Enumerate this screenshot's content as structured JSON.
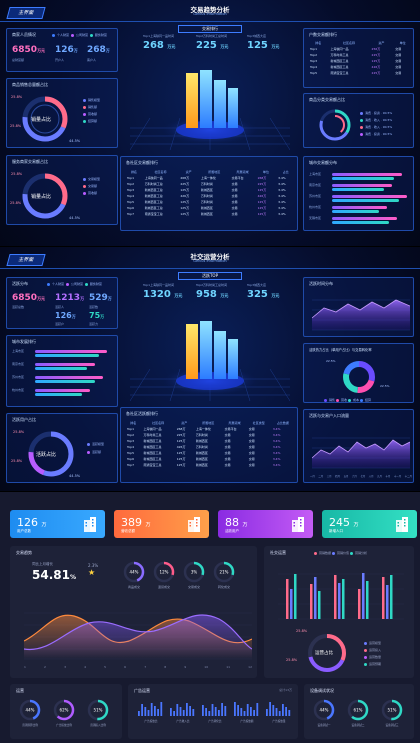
{
  "s1": {
    "title": "交易趋势分析",
    "subtitle": "Genius Information",
    "home": "主界面",
    "top_tab": "交易排行",
    "metrics": [
      {
        "label": "Top1上海除同一品时间",
        "value": "268",
        "unit": "万元"
      },
      {
        "label": "Top2万科时尚工总时间",
        "value": "225",
        "unit": "万元"
      },
      {
        "label": "Top3城西大店",
        "value": "125",
        "unit": "万元"
      }
    ],
    "left_top": {
      "title": "商家人员情况",
      "legend": [
        "个人财富",
        "公司财富",
        "服务财富"
      ],
      "stats": [
        {
          "value": "6850",
          "unit": "万元",
          "label": "总财富额"
        },
        {
          "value": "126",
          "unit": "万",
          "label": "开户人"
        },
        {
          "value": "268",
          "unit": "万",
          "label": "客户人"
        }
      ]
    },
    "left_mid": {
      "title": "商品销售总量额占比",
      "center": "销量占比",
      "pct_a": "25.8%",
      "pct_b": "25.8%",
      "pct_c": "44.5%",
      "legend": [
        "销售模型",
        "销售额",
        "营收额",
        "结算额"
      ]
    },
    "left_bot": {
      "title": "服务商家交易额占比",
      "center": "销量占比",
      "pct_a": "25.8%",
      "pct_b": "25.8%",
      "pct_c": "44.5%",
      "legend": [
        "交易模型",
        "交易额",
        "营收额"
      ]
    },
    "mid_table": {
      "title": "各社区交易额排行",
      "headers": [
        "排名",
        "社区名称",
        "资产",
        "所属地区",
        "所属领域",
        "单位",
        "占比"
      ],
      "rows": [
        [
          "Top1",
          "上海信同一品",
          "268万",
          "上海一体化",
          "交易平台",
          "268万",
          "3.4%"
        ],
        [
          "Top2",
          "万科时尚工总",
          "225万",
          "万科时尚",
          "交易",
          "225万",
          "3.4%"
        ],
        [
          "Top3",
          "新城西区工总",
          "125万",
          "新城西区",
          "交易",
          "125万",
          "3.4%"
        ],
        [
          "Top4",
          "新城西区工总",
          "426万",
          "万科时尚",
          "交易",
          "426万",
          "3.4%"
        ],
        [
          "Top5",
          "新城西区工总",
          "125万",
          "万科时尚",
          "交易",
          "125万",
          "3.4%"
        ],
        [
          "Top6",
          "新城西区工总",
          "125万",
          "新城西区",
          "交易",
          "125万",
          "3.4%"
        ],
        [
          "Top7",
          "南通宝宝工总",
          "125万",
          "新城西区",
          "交易",
          "125万",
          "3.4%"
        ]
      ]
    },
    "right_top": {
      "title": "户数交易额排行",
      "headers": [
        "排名",
        "社区名称",
        "资产",
        "单位"
      ],
      "rows": [
        [
          "Top1",
          "上海信同一品",
          "256万",
          "交易"
        ],
        [
          "Top2",
          "万科时尚工总",
          "225万",
          "交易"
        ],
        [
          "Top3",
          "新城西区工总",
          "125万",
          "交易"
        ],
        [
          "Top4",
          "新城西区工总",
          "426万",
          "交易"
        ],
        [
          "Top5",
          "南通宝宝工总",
          "225万",
          "交易"
        ]
      ]
    },
    "right_mid": {
      "title": "商品分类交易额占比",
      "legend": [
        "消费 · 投资 · 90.5%",
        "消费 · 收入 · 90.5%",
        "消费 · 收入 · 90.5%",
        "消费 · 投资 · 90.5%"
      ]
    },
    "right_bot": {
      "title": "城市交易额分布",
      "labels": [
        "上海市区",
        "南京市区",
        "苏州市区",
        "杭州市区",
        "无锡市区"
      ]
    }
  },
  "s2": {
    "title": "社交运营分析",
    "subtitle": "Genius Information",
    "home": "主界面",
    "top_tab": "活跃TOP",
    "metrics": [
      {
        "label": "Top1上海除同一品时间",
        "value": "1320",
        "unit": "万元"
      },
      {
        "label": "Top2万科时尚工总时间",
        "value": "958",
        "unit": "万元"
      },
      {
        "label": "Top3城西大店",
        "value": "325",
        "unit": "万元"
      }
    ],
    "left_top": {
      "title": "活跃分布",
      "legend": [
        "个人财富",
        "公司财富",
        "服务财富"
      ],
      "stats": [
        {
          "value": "6850",
          "unit": "万元",
          "label": "活跃总数"
        },
        {
          "value": "1213",
          "unit": "万",
          "label": "活跃人"
        },
        {
          "value": "529",
          "unit": "万",
          "label": "活跃数"
        },
        {
          "value": "126",
          "unit": "万",
          "label": "活跃户"
        },
        {
          "value": "75",
          "unit": "万",
          "label": "活跃力"
        }
      ]
    },
    "left_mid": {
      "title": "城市发展排行",
      "labels": [
        "上海市区",
        "南京市区",
        "苏州市区",
        "杭州市区"
      ]
    },
    "left_bot": {
      "title": "活跃用户占比",
      "center": "活跃占比",
      "pct_a": "25.8%",
      "pct_b": "25.8%",
      "pct_c": "44.5%",
      "legend": [
        "活跃模型",
        "活跃额"
      ]
    },
    "mid_table": {
      "title": "各社区活跃额排行",
      "headers": [
        "排名",
        "社区名称",
        "资产",
        "所属地区",
        "所属领域",
        "社区类型",
        "占比数据"
      ],
      "rows": [
        [
          "Top1",
          "上海信同一品",
          "268万",
          "上海一体化",
          "交易平台",
          "交易",
          "3.4%"
        ],
        [
          "Top2",
          "万科时尚工总",
          "225万",
          "万科时尚",
          "交易",
          "交易",
          "3.4%"
        ],
        [
          "Top3",
          "新城西区工总",
          "125万",
          "新城西区",
          "交易",
          "交易",
          "3.4%"
        ],
        [
          "Top4",
          "新城西区工总",
          "426万",
          "万科时尚",
          "交易",
          "交易",
          "3.4%"
        ],
        [
          "Top5",
          "新城西区工总",
          "125万",
          "新城西区",
          "交易",
          "交易",
          "3.4%"
        ],
        [
          "Top6",
          "新城西区工总",
          "125万",
          "新城西区",
          "交易",
          "交易",
          "3.4%"
        ],
        [
          "Top7",
          "南通宝宝工总",
          "125万",
          "新城西区",
          "交易",
          "交易",
          "3.4%"
        ]
      ]
    },
    "right_top": {
      "title": "活跃时间分布"
    },
    "right_mid": {
      "title": "活跃热力占比（单用户占比）与交易转化率",
      "note_a": "22.5%",
      "note_b": "22.5%",
      "legend": [
        "销售",
        "营收",
        "成本",
        "结算"
      ]
    },
    "right_bot": {
      "title": "活跃与交易户入口流量",
      "x_labels": [
        "一月",
        "二月",
        "三月",
        "四月",
        "五月",
        "六月",
        "七月",
        "八月",
        "九月",
        "十月",
        "十一月",
        "十二月"
      ]
    }
  },
  "s3": {
    "cards": [
      {
        "value": "126",
        "unit": "万",
        "label": "用户总数",
        "c1": "#1e8cf0",
        "c2": "#39a9ff"
      },
      {
        "value": "389",
        "unit": "万",
        "label": "营收总额",
        "c1": "#ff6a3d",
        "c2": "#ffa04a"
      },
      {
        "value": "88",
        "unit": "万",
        "label": "活跃用户",
        "c1": "#8a2be2",
        "c2": "#c45cf5"
      },
      {
        "value": "245",
        "unit": "万",
        "label": "新增人口",
        "c1": "#17b8a6",
        "c2": "#34e0c4"
      }
    ],
    "trend": {
      "title": "交易趋势",
      "label": "同比上月增长",
      "value": "54.81",
      "unit": "%",
      "mini": "2.3%",
      "rings": [
        {
          "v": "44%",
          "l": "商品成交",
          "c": "#8a6cff"
        },
        {
          "v": "12%",
          "l": "退货成交",
          "c": "#ff5c8a"
        },
        {
          "v": "3%",
          "l": "交易成交",
          "c": "#2fd8c5"
        },
        {
          "v": "21%",
          "l": "转化成交",
          "c": "#2fd8c5"
        }
      ],
      "x_labels": [
        "1",
        "2",
        "3",
        "4",
        "5",
        "6",
        "7",
        "8",
        "9",
        "10",
        "11",
        "12"
      ]
    },
    "social": {
      "title": "社交运营",
      "legend": [
        "营销数据",
        "营销价值",
        "营销分析"
      ],
      "center": "运营占比",
      "pct_a": "25.8%",
      "pct_b": "25.8%",
      "legend2": [
        "运营模型",
        "运营投入",
        "运营数量",
        "运营预期"
      ]
    },
    "bottom_left": {
      "title": "运营",
      "rings": [
        {
          "v": "44%",
          "l": "营销预算比例",
          "c": "#4a76ff"
        },
        {
          "v": "62%",
          "l": "广告投放比例",
          "c": "#b05cff"
        },
        {
          "v": "51%",
          "l": "营销投入比例",
          "c": "#2fd8c5"
        }
      ]
    },
    "bottom_mid": {
      "title": "广告运营",
      "note": "总计13万",
      "labels": [
        "广告投放比",
        "广告收入比",
        "广告转化比",
        "广告投放额",
        "广告投放量"
      ]
    },
    "bottom_right": {
      "title": "设备调试状况",
      "rings": [
        {
          "v": "44%",
          "l": "设备调试一",
          "c": "#4a76ff"
        },
        {
          "v": "61%",
          "l": "设备调试二",
          "c": "#2fd8c5"
        },
        {
          "v": "51%",
          "l": "设备调试三",
          "c": "#2fd8c5"
        }
      ]
    }
  }
}
